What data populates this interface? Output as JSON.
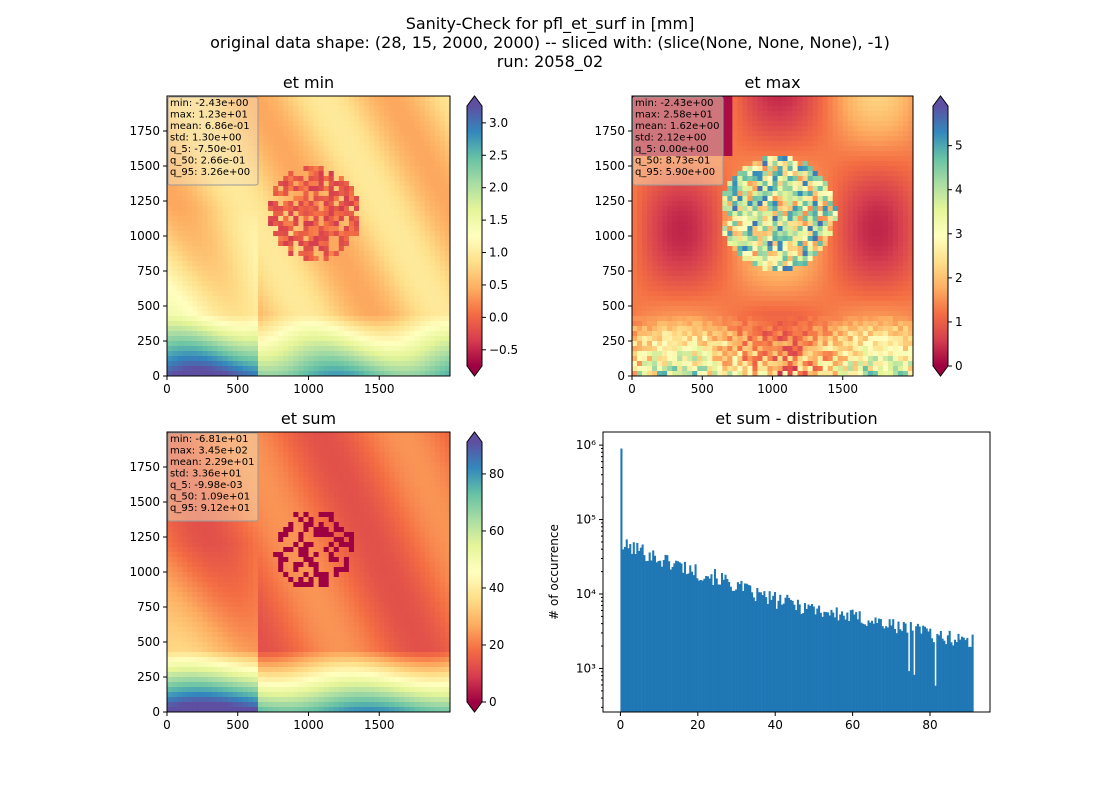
{
  "figure": {
    "title_lines": [
      "Sanity-Check for pfl_et_surf in [mm]",
      "original data shape: (28, 15, 2000, 2000) -- sliced with: (slice(None, None, None), -1)",
      "run: 2058_02"
    ]
  },
  "colors": {
    "spectral": [
      "#9e0142",
      "#d53e4f",
      "#f46d43",
      "#fdae61",
      "#fee08b",
      "#ffffbf",
      "#e6f598",
      "#abdda4",
      "#66c2a5",
      "#3288bd",
      "#5e4fa2"
    ],
    "hist_bar": "#1f77b4",
    "stats_box_fill": "#f5deb3"
  },
  "chart_data": [
    {
      "type": "heatmap",
      "title": "et min",
      "xlim": [
        0,
        2000
      ],
      "ylim": [
        0,
        2000
      ],
      "xticks": [
        "0",
        "500",
        "1000",
        "1500"
      ],
      "yticks": [
        "0",
        "250",
        "500",
        "750",
        "1000",
        "1250",
        "1500",
        "1750"
      ],
      "colorbar": {
        "min": -0.75,
        "max": 3.26,
        "extend": "both",
        "ticks": [
          "−0.5",
          "0.0",
          "0.5",
          "1.0",
          "1.5",
          "2.0",
          "2.5",
          "3.0"
        ],
        "tick_values": [
          -0.5,
          0,
          0.5,
          1,
          1.5,
          2,
          2.5,
          3
        ]
      },
      "stats": [
        "min: -2.43e+00",
        "max: 1.23e+01",
        "mean: 6.86e-01",
        "std: 1.30e+00",
        "q_5: -7.50e-01",
        "q_50: 2.66e-01",
        "q_95: 3.26e+00"
      ]
    },
    {
      "type": "heatmap",
      "title": "et max",
      "xlim": [
        0,
        2000
      ],
      "ylim": [
        0,
        2000
      ],
      "xticks": [
        "0",
        "500",
        "1000",
        "1500"
      ],
      "yticks": [
        "0",
        "250",
        "500",
        "750",
        "1000",
        "1250",
        "1500",
        "1750"
      ],
      "colorbar": {
        "min": 0,
        "max": 5.9,
        "extend": "both",
        "ticks": [
          "0",
          "1",
          "2",
          "3",
          "4",
          "5"
        ],
        "tick_values": [
          0,
          1,
          2,
          3,
          4,
          5
        ]
      },
      "stats": [
        "min: -2.43e+00",
        "max: 2.58e+01",
        "mean: 1.62e+00",
        "std: 2.12e+00",
        "q_5: 0.00e+00",
        "q_50: 8.73e-01",
        "q_95: 5.90e+00"
      ]
    },
    {
      "type": "heatmap",
      "title": "et sum",
      "xlim": [
        0,
        2000
      ],
      "ylim": [
        0,
        2000
      ],
      "xticks": [
        "0",
        "500",
        "1000",
        "1500"
      ],
      "yticks": [
        "0",
        "250",
        "500",
        "750",
        "1000",
        "1250",
        "1500",
        "1750"
      ],
      "colorbar": {
        "min": 0,
        "max": 91.2,
        "extend": "both",
        "ticks": [
          "0",
          "20",
          "40",
          "60",
          "80"
        ],
        "tick_values": [
          0,
          20,
          40,
          60,
          80
        ]
      },
      "stats": [
        "min: -6.81e+01",
        "max: 3.45e+02",
        "mean: 2.29e+01",
        "std: 3.36e+01",
        "q_5: -9.98e-03",
        "q_50: 1.09e+01",
        "q_95: 9.12e+01"
      ]
    },
    {
      "type": "bar",
      "title": "et sum - distribution",
      "ylabel": "# of occurrence",
      "yscale": "log",
      "xlim": [
        -4.5,
        95.5
      ],
      "ylim": [
        260,
        1500000
      ],
      "xticks": [
        "0",
        "20",
        "40",
        "60",
        "80"
      ],
      "xtick_values": [
        0,
        20,
        40,
        60,
        80
      ],
      "yticks": [
        "10³",
        "10⁴",
        "10⁵",
        "10⁶"
      ],
      "ytick_values": [
        1000,
        10000,
        100000,
        1000000
      ],
      "bin_range": [
        0,
        91.2
      ],
      "bin_count": 200,
      "first_bin_value": 900000,
      "envelope": {
        "x": [
          0.5,
          5,
          10,
          15,
          20,
          25,
          30,
          35,
          40,
          45,
          50,
          55,
          60,
          65,
          70,
          75,
          80,
          85,
          91
        ],
        "count": [
          45000,
          40000,
          30000,
          25000,
          20000,
          17000,
          13000,
          10000,
          8500,
          7500,
          6500,
          5500,
          5000,
          4500,
          3800,
          3500,
          3000,
          2700,
          2500
        ]
      }
    }
  ]
}
